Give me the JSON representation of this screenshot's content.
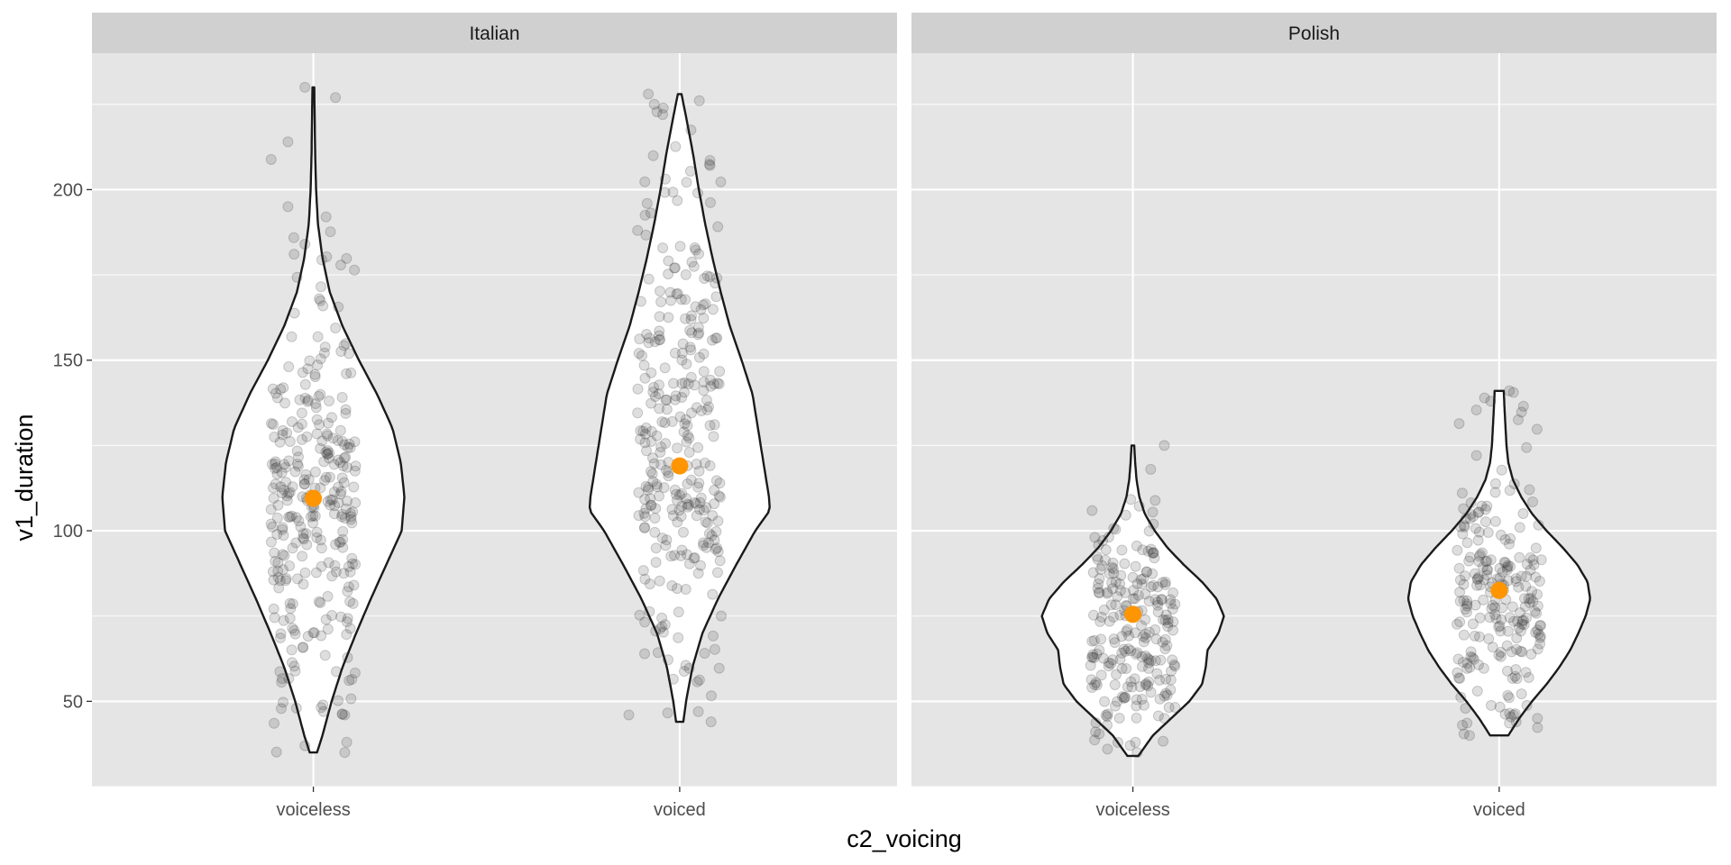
{
  "chart_data": {
    "type": "violin",
    "xlabel": "c2_voicing",
    "ylabel": "v1_duration",
    "ylim": [
      25,
      240
    ],
    "yticks": [
      50,
      100,
      150,
      200
    ],
    "categories": [
      "voiceless",
      "voiced"
    ],
    "grid": true,
    "colors": {
      "panel_bg": "#e5e5e5",
      "strip_bg": "#d0d0d0",
      "grid": "#ffffff",
      "violin_fill": "#ffffff",
      "violin_stroke": "#1a1a1a",
      "point": "#333333",
      "mean_point": "#ff9500"
    },
    "panels": [
      {
        "facet": "Italian",
        "groups": [
          {
            "category": "voiceless",
            "mean": 109.5,
            "min": 35,
            "max": 230,
            "n_points": 300,
            "density": [
              [
                35,
                0.04
              ],
              [
                40,
                0.1
              ],
              [
                50,
                0.2
              ],
              [
                60,
                0.32
              ],
              [
                70,
                0.47
              ],
              [
                80,
                0.63
              ],
              [
                90,
                0.8
              ],
              [
                100,
                0.97
              ],
              [
                110,
                1.0
              ],
              [
                120,
                0.96
              ],
              [
                130,
                0.87
              ],
              [
                140,
                0.7
              ],
              [
                150,
                0.5
              ],
              [
                160,
                0.32
              ],
              [
                170,
                0.18
              ],
              [
                180,
                0.1
              ],
              [
                190,
                0.05
              ],
              [
                200,
                0.03
              ],
              [
                210,
                0.02
              ],
              [
                220,
                0.015
              ],
              [
                230,
                0.01
              ]
            ],
            "outlier_points": [
              [
                230,
                -0.1
              ],
              [
                214,
                -0.3
              ],
              [
                195,
                -0.3
              ],
              [
                192,
                0.15
              ],
              [
                184,
                -0.1
              ],
              [
                37,
                -0.1
              ],
              [
                48,
                -0.2
              ],
              [
                47,
                0.12
              ],
              [
                46,
                0.37
              ],
              [
                35,
                0.37
              ]
            ]
          },
          {
            "category": "voiced",
            "mean": 119,
            "min": 44,
            "max": 228,
            "n_points": 300,
            "density": [
              [
                44,
                0.04
              ],
              [
                50,
                0.07
              ],
              [
                60,
                0.14
              ],
              [
                70,
                0.25
              ],
              [
                80,
                0.42
              ],
              [
                90,
                0.62
              ],
              [
                100,
                0.83
              ],
              [
                106,
                0.99
              ],
              [
                110,
                0.98
              ],
              [
                120,
                0.92
              ],
              [
                130,
                0.86
              ],
              [
                140,
                0.8
              ],
              [
                150,
                0.68
              ],
              [
                160,
                0.55
              ],
              [
                170,
                0.45
              ],
              [
                180,
                0.36
              ],
              [
                190,
                0.28
              ],
              [
                200,
                0.21
              ],
              [
                210,
                0.15
              ],
              [
                220,
                0.08
              ],
              [
                228,
                0.02
              ]
            ],
            "outlier_points": [
              [
                228,
                -0.37
              ],
              [
                225,
                -0.3
              ],
              [
                222,
                -0.2
              ],
              [
                46,
                -0.6
              ],
              [
                44,
                0.37
              ],
              [
                47,
                0.22
              ]
            ]
          }
        ]
      },
      {
        "facet": "Polish",
        "groups": [
          {
            "category": "voiceless",
            "mean": 75.5,
            "min": 34,
            "max": 125,
            "n_points": 220,
            "density": [
              [
                34,
                0.06
              ],
              [
                40,
                0.22
              ],
              [
                45,
                0.42
              ],
              [
                50,
                0.62
              ],
              [
                55,
                0.76
              ],
              [
                60,
                0.8
              ],
              [
                65,
                0.82
              ],
              [
                70,
                0.94
              ],
              [
                75,
                1.0
              ],
              [
                80,
                0.92
              ],
              [
                85,
                0.76
              ],
              [
                90,
                0.56
              ],
              [
                95,
                0.38
              ],
              [
                100,
                0.24
              ],
              [
                105,
                0.13
              ],
              [
                110,
                0.07
              ],
              [
                115,
                0.04
              ],
              [
                120,
                0.025
              ],
              [
                125,
                0.015
              ]
            ],
            "outlier_points": [
              [
                125,
                0.37
              ],
              [
                118,
                0.21
              ],
              [
                36,
                -0.3
              ],
              [
                35,
                0.05
              ],
              [
                38,
                0.03
              ]
            ]
          },
          {
            "category": "voiced",
            "mean": 82.5,
            "min": 40,
            "max": 141,
            "n_points": 220,
            "density": [
              [
                40,
                0.1
              ],
              [
                45,
                0.22
              ],
              [
                50,
                0.36
              ],
              [
                55,
                0.52
              ],
              [
                60,
                0.66
              ],
              [
                65,
                0.78
              ],
              [
                70,
                0.87
              ],
              [
                75,
                0.95
              ],
              [
                80,
                1.0
              ],
              [
                85,
                0.97
              ],
              [
                90,
                0.86
              ],
              [
                95,
                0.7
              ],
              [
                100,
                0.52
              ],
              [
                105,
                0.36
              ],
              [
                110,
                0.24
              ],
              [
                115,
                0.15
              ],
              [
                120,
                0.1
              ],
              [
                125,
                0.08
              ],
              [
                130,
                0.07
              ],
              [
                135,
                0.06
              ],
              [
                141,
                0.05
              ]
            ],
            "outlier_points": [
              [
                141,
                0.12
              ],
              [
                138,
                -0.1
              ],
              [
                40,
                -0.35
              ],
              [
                44,
                0.2
              ],
              [
                46,
                0.17
              ]
            ]
          }
        ]
      }
    ]
  }
}
